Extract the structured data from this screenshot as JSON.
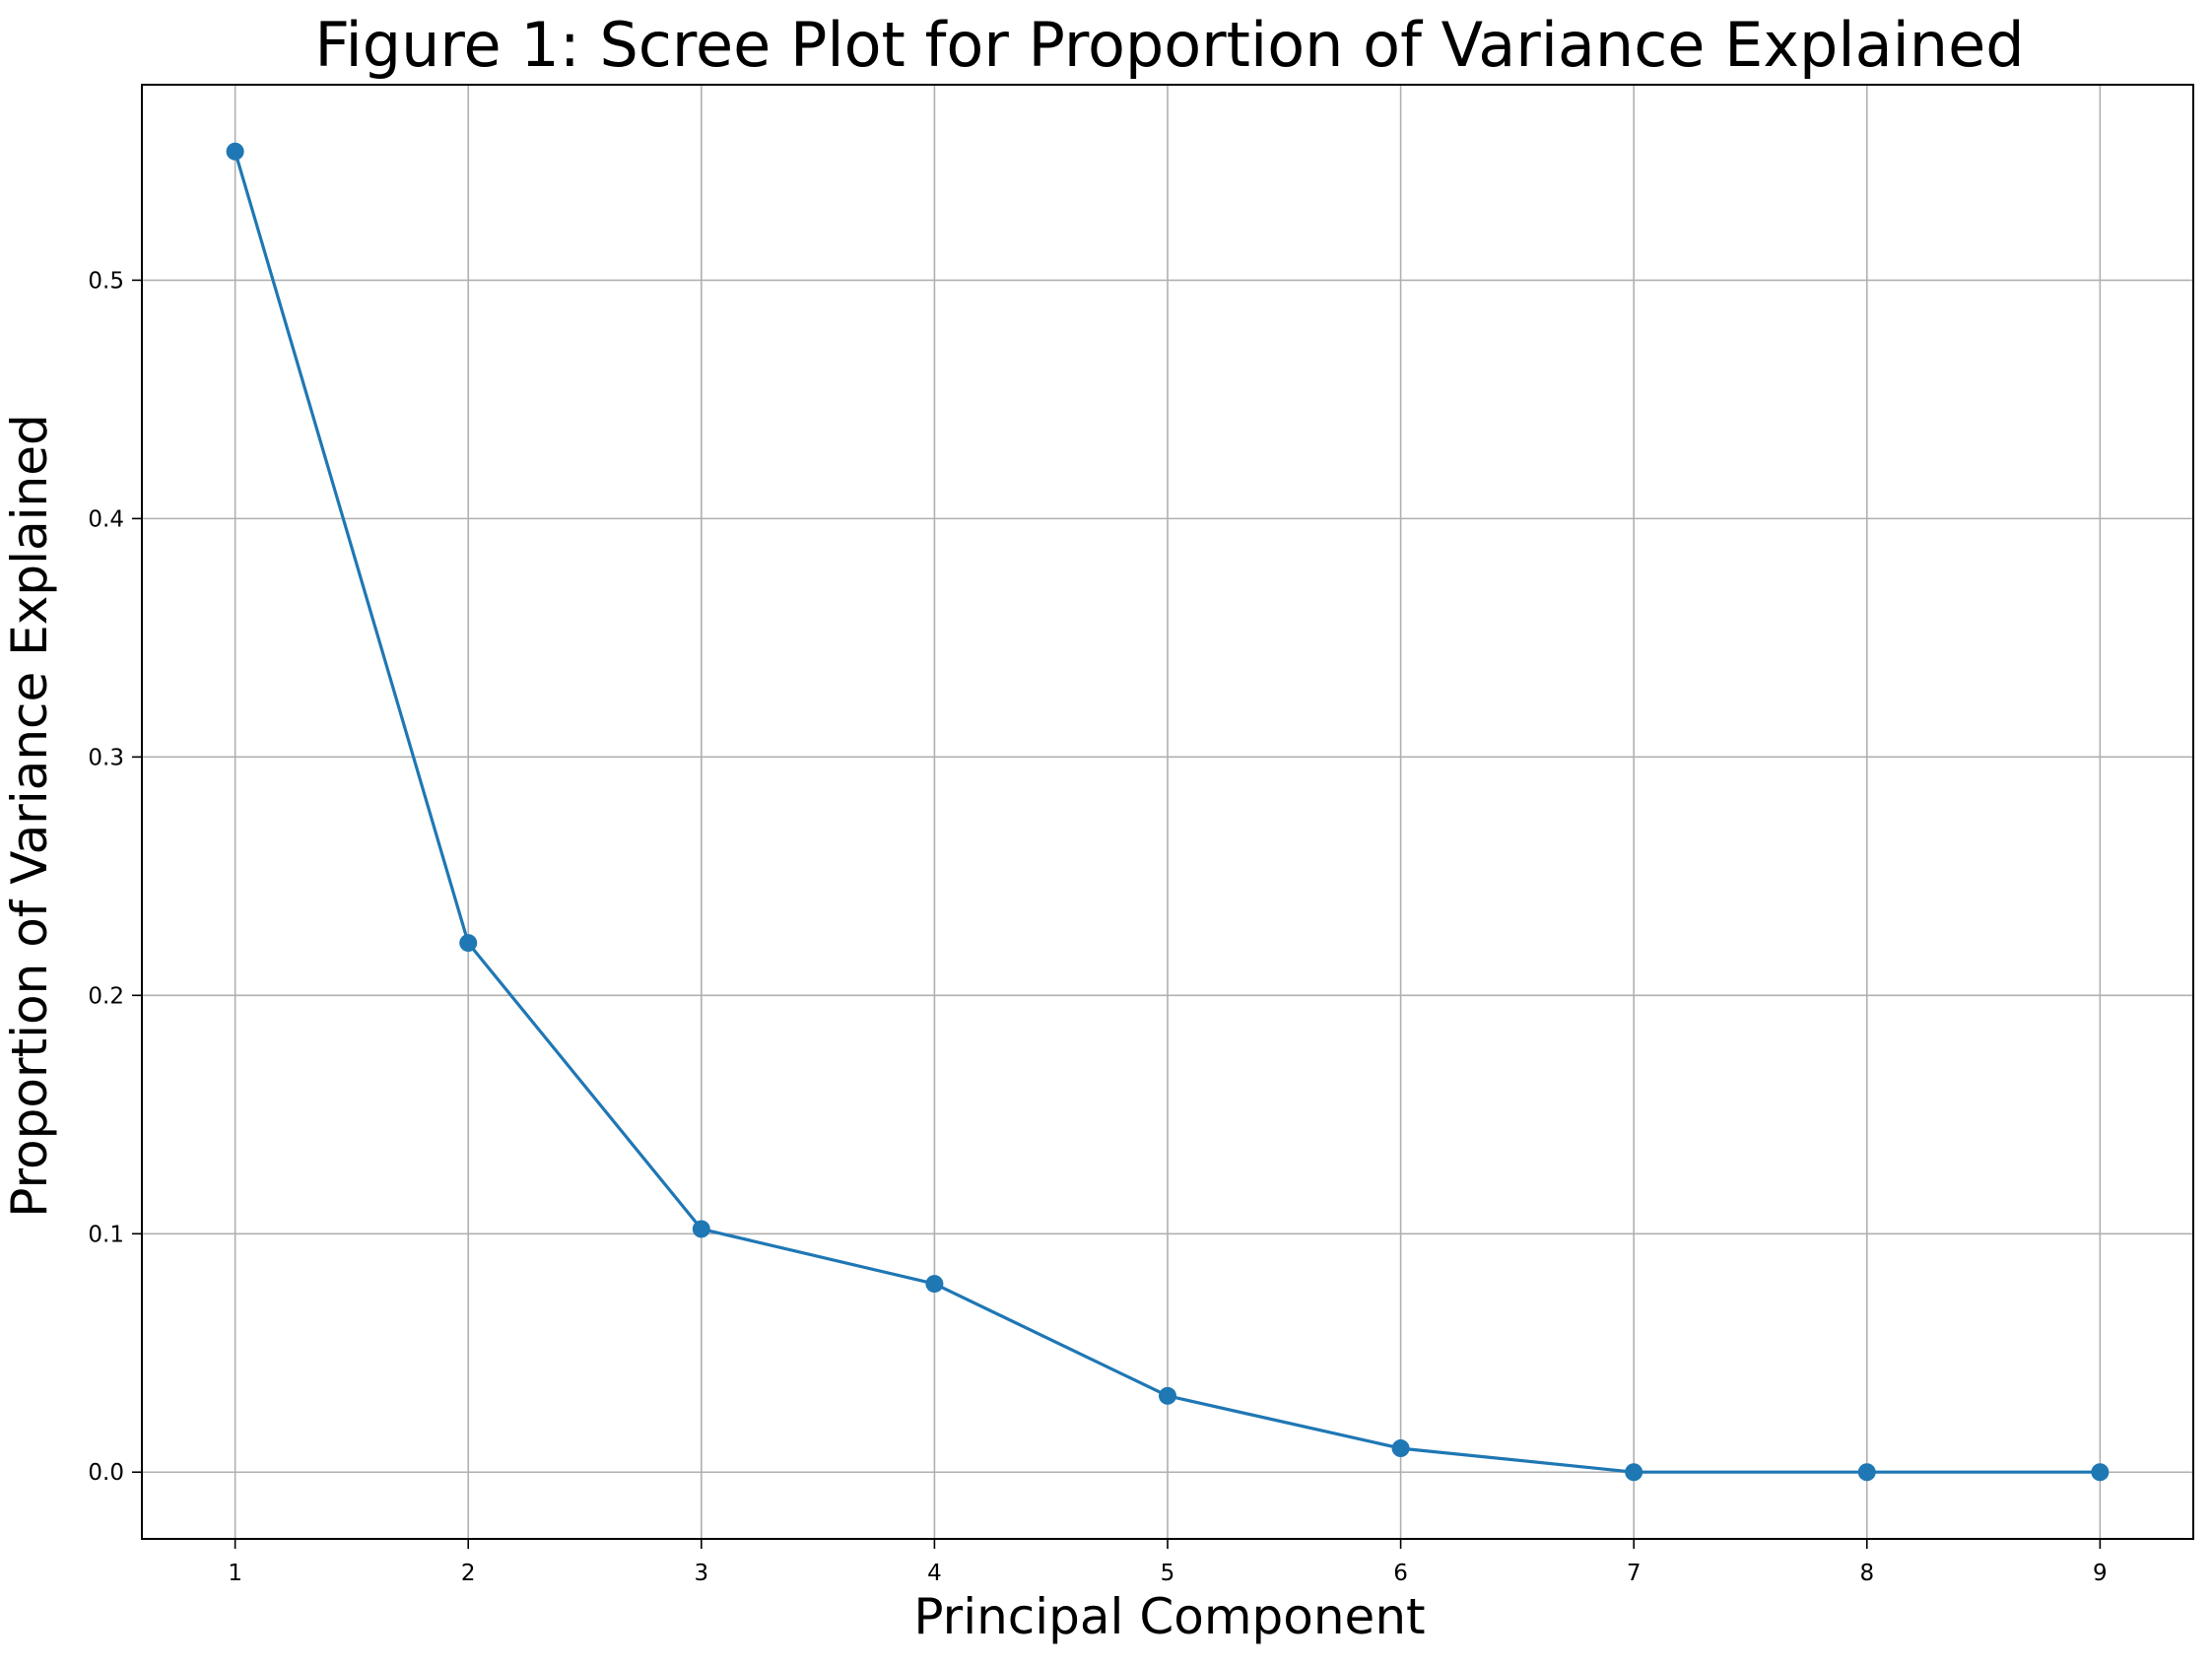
{
  "chart_data": {
    "type": "line",
    "title": "Figure 1: Scree Plot for Proportion of Variance Explained",
    "xlabel": "Principal Component",
    "ylabel": "Proportion of Variance Explained",
    "x": [
      1,
      2,
      3,
      4,
      5,
      6,
      7,
      8,
      9
    ],
    "x_tick_labels": [
      "1",
      "2",
      "3",
      "4",
      "5",
      "6",
      "7",
      "8",
      "9"
    ],
    "y_tick_values": [
      0.0,
      0.1,
      0.2,
      0.3,
      0.4,
      0.5
    ],
    "y_tick_labels": [
      "0.0",
      "0.1",
      "0.2",
      "0.3",
      "0.4",
      "0.5"
    ],
    "series": [
      {
        "values": [
          0.554,
          0.222,
          0.102,
          0.079,
          0.032,
          0.01,
          0.0,
          0.0,
          0.0
        ],
        "color": "#1f77b4",
        "marker": "circle"
      }
    ],
    "xlim": [
      0.6,
      9.4
    ],
    "ylim": [
      -0.028,
      0.582
    ],
    "grid": true,
    "grid_color": "#b0b0b0"
  }
}
